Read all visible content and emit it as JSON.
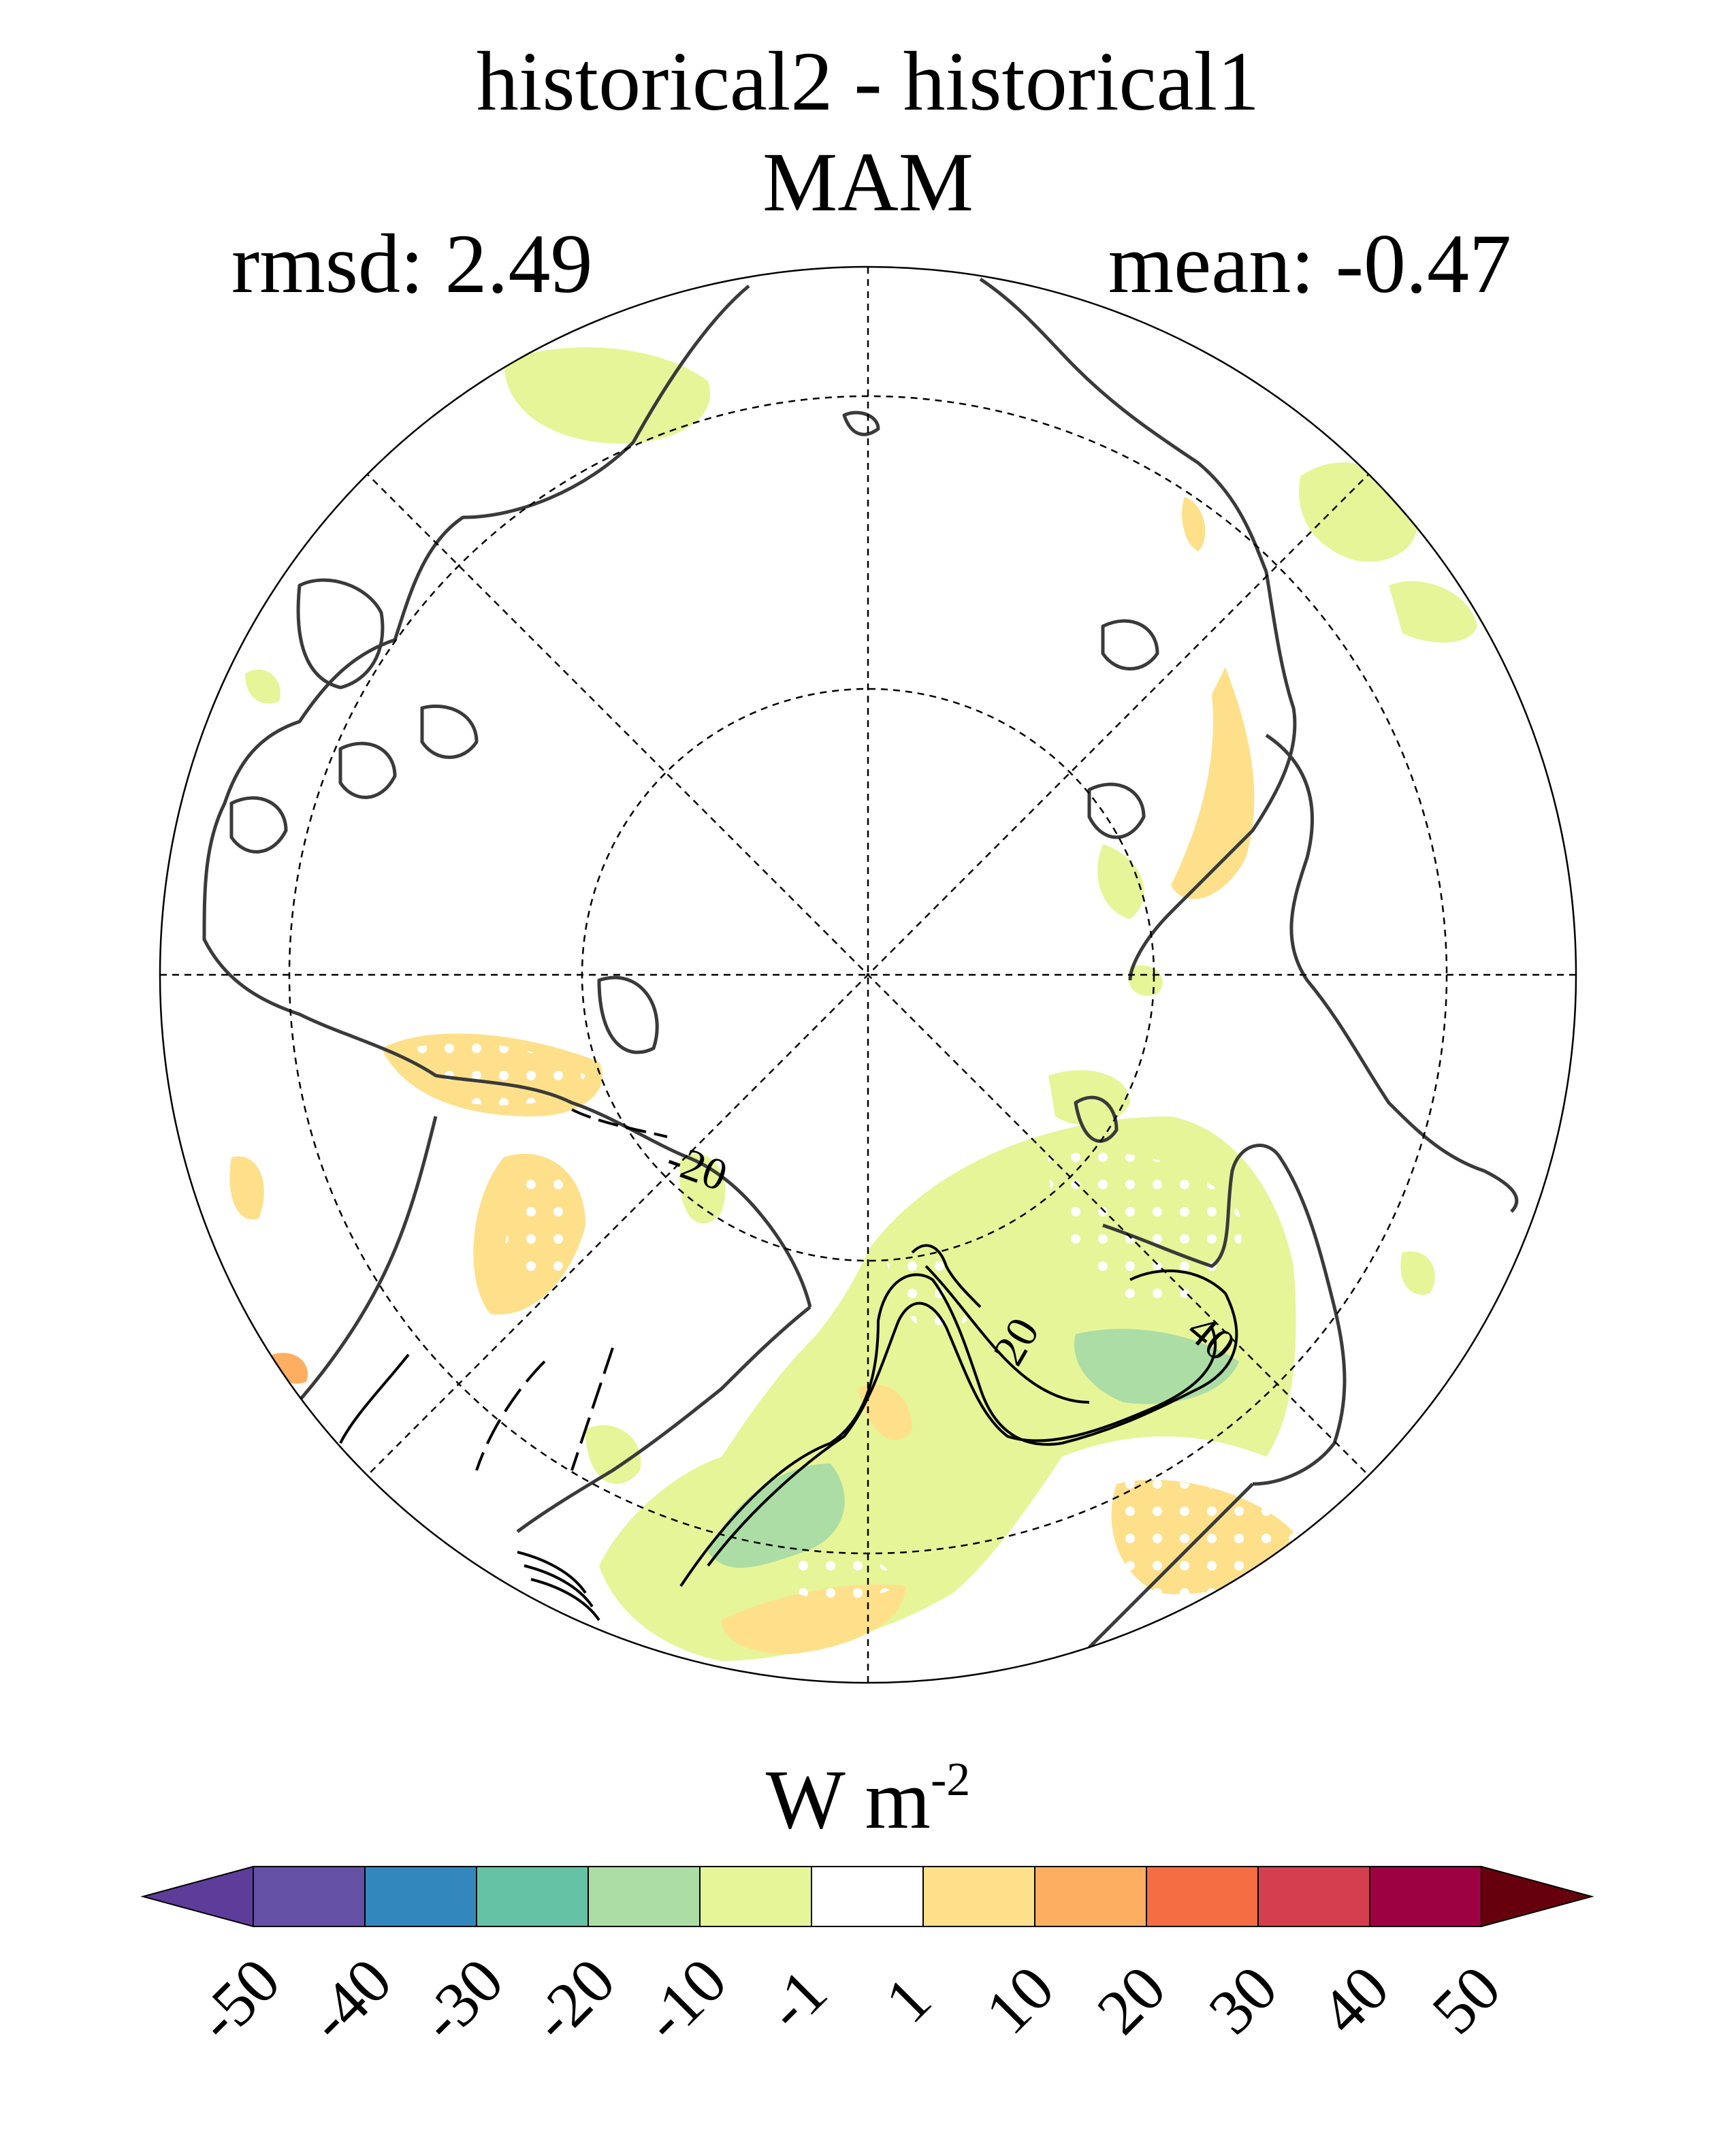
{
  "title": {
    "line1": "historical2 - historical1",
    "line2": "MAM"
  },
  "stats": {
    "rmsd": "rmsd: 2.49",
    "mean": "mean: -0.47"
  },
  "map": {
    "projection": "north polar stereographic",
    "contour_labels": [
      "-20",
      "20",
      "40"
    ],
    "colors": {
      "coastline": "#3a3a3a",
      "graticule": "#000000",
      "stipple": "#ffffff"
    }
  },
  "colorbar": {
    "unit_base": "W m",
    "unit_exp": "-2",
    "tick_labels": [
      "-50",
      "-40",
      "-30",
      "-20",
      "-10",
      "-1",
      "1",
      "10",
      "20",
      "30",
      "40",
      "50"
    ],
    "colors": [
      "#5e3c99",
      "#6450a4",
      "#3288bd",
      "#66c2a5",
      "#abdda4",
      "#e6f598",
      "#ffffff",
      "#fee08b",
      "#fdae61",
      "#f46d43",
      "#d53e4f",
      "#9e0142",
      "#67000d"
    ]
  }
}
